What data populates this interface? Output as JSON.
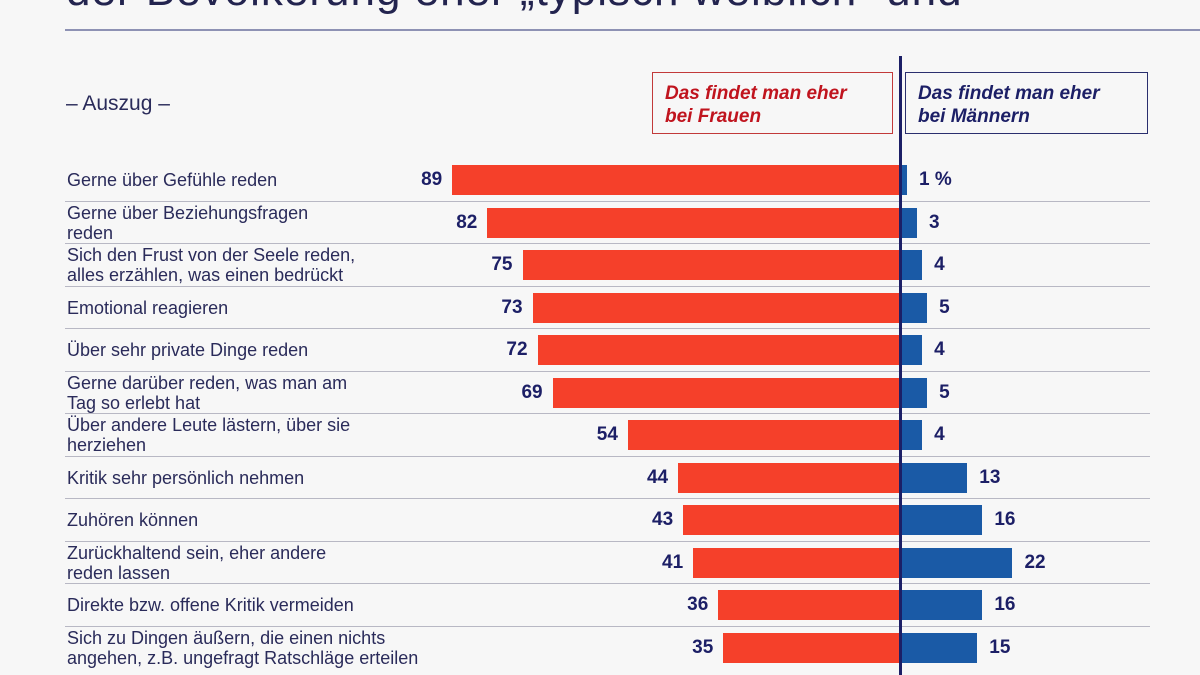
{
  "title": "der Bevölkerung eher „typisch weiblich“ und",
  "subtitle": "– Auszug –",
  "colors": {
    "women": "#f5402a",
    "men": "#1a5aa6",
    "text": "#1c1f66"
  },
  "chart_data": {
    "type": "bar",
    "orientation": "horizontal-diverging",
    "unit": "%",
    "series": [
      {
        "name": "Das findet man eher bei Frauen",
        "values": [
          89,
          82,
          75,
          73,
          72,
          69,
          54,
          44,
          43,
          41,
          36,
          35
        ]
      },
      {
        "name": "Das findet man eher bei Männern",
        "values": [
          1,
          3,
          4,
          5,
          4,
          5,
          4,
          13,
          16,
          22,
          16,
          15
        ]
      }
    ],
    "categories": [
      "Gerne über Gefühle reden",
      "Gerne über Beziehungsfragen\nreden",
      "Sich den Frust von der Seele reden,\nalles erzählen, was einen bedrückt",
      "Emotional reagieren",
      "Über sehr private Dinge reden",
      "Gerne darüber reden, was man am\nTag so erlebt hat",
      "Über andere Leute lästern, über sie\nherziehen",
      "Kritik sehr persönlich nehmen",
      "Zuhören können",
      "Zurückhaltend sein, eher andere\nreden lassen",
      "Direkte bzw. offene Kritik vermeiden",
      "Sich zu Dingen äußern, die einen nichts\nangehen, z.B. ungefragt Ratschläge erteilen"
    ],
    "value_labels_men": [
      "1 %",
      "3",
      "4",
      "5",
      "4",
      "5",
      "4",
      "13",
      "16",
      "22",
      "16",
      "15"
    ]
  },
  "legend": {
    "women": "Das findet man eher\nbei Frauen",
    "men": "Das findet man eher\nbei Männern"
  }
}
